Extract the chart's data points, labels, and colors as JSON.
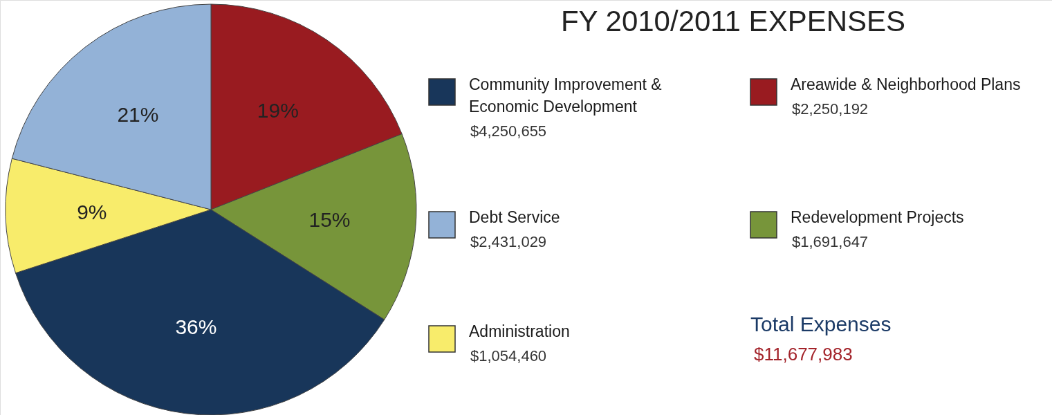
{
  "chart_data": {
    "type": "pie",
    "title": "FY 2010/2011 EXPENSES",
    "categories": [
      "Areawide & Neighborhood Plans",
      "Redevelopment Projects",
      "Community Improvement & Economic Development",
      "Administration",
      "Debt Service"
    ],
    "values": [
      19,
      15,
      36,
      9,
      21
    ],
    "colors": [
      "#991b20",
      "#77953a",
      "#18365a",
      "#f8ec6b",
      "#93b2d7"
    ],
    "value_labels": [
      "19%",
      "15%",
      "36%",
      "9%",
      "21%"
    ],
    "legend": "right",
    "annotations": [
      {
        "text": "$2,250,192",
        "x": "Areawide & Neighborhood Plans"
      },
      {
        "text": "$1,691,647",
        "x": "Redevelopment Projects"
      },
      {
        "text": "$4,250,655",
        "x": "Community Improvement & Economic Development"
      },
      {
        "text": "$1,054,460",
        "x": "Administration"
      },
      {
        "text": "$2,431,029",
        "x": "Debt Service"
      },
      "Total Expenses",
      "$11,677,983"
    ]
  }
}
